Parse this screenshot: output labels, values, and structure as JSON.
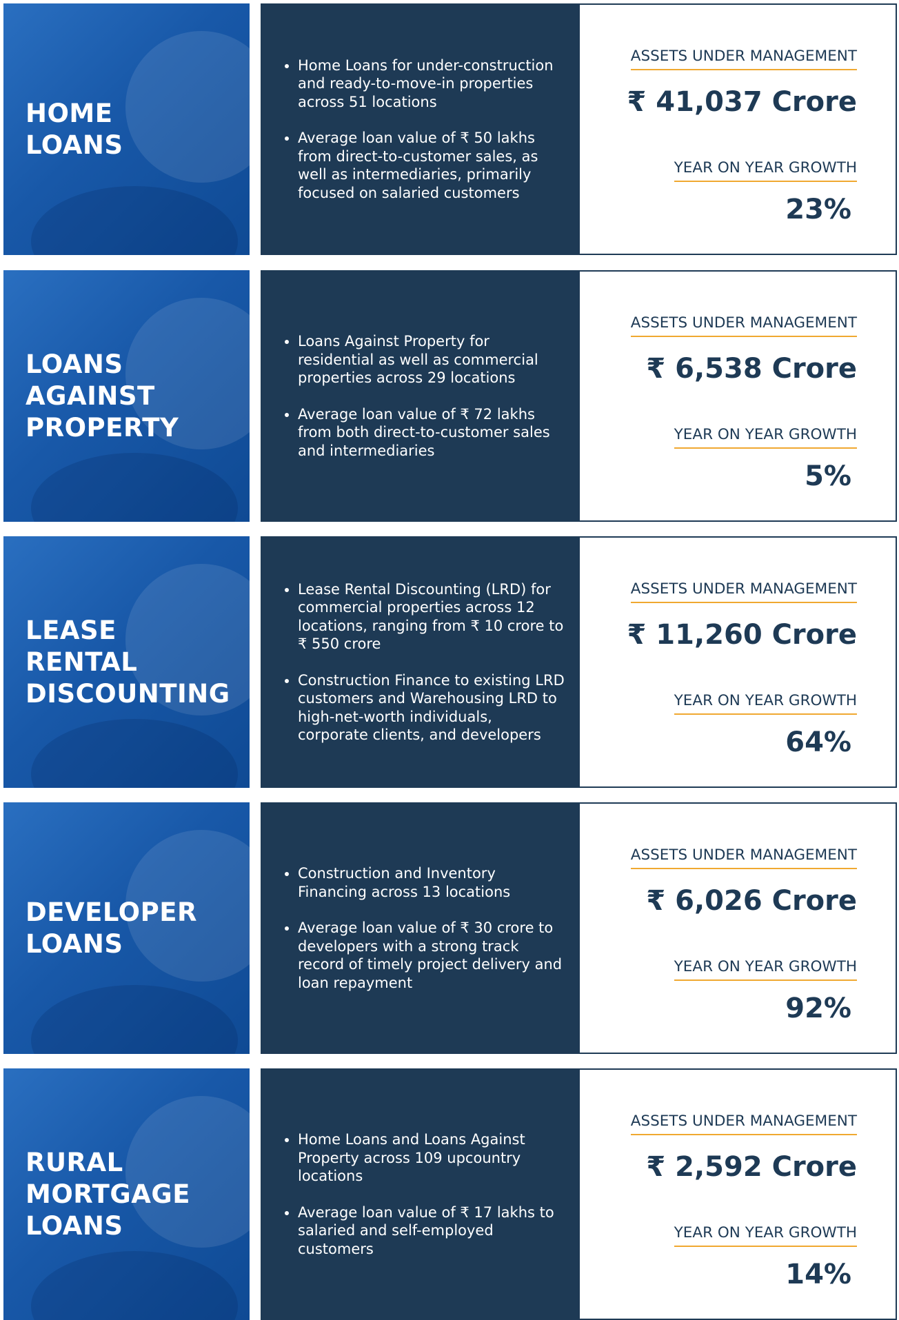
{
  "sections": [
    {
      "title_lines": [
        "HOME",
        "LOANS"
      ],
      "bullets": [
        "Home Loans for under-construction and ready-to-move-in properties across 51 locations",
        "Average loan value of ₹ 50 lakhs from direct-to-customer sales, as well as intermediaries, primarily focused on salaried customers"
      ],
      "aum_label": "ASSETS UNDER MANAGEMENT",
      "aum_value": "₹ 41,037 Crore",
      "growth_label": "YEAR ON YEAR GROWTH",
      "growth_value": "23%"
    },
    {
      "title_lines": [
        "LOANS",
        "AGAINST",
        "PROPERTY"
      ],
      "bullets": [
        "Loans Against Property for residential as well as commercial properties across 29 locations",
        "Average loan value of ₹ 72 lakhs from both direct-to-customer sales and intermediaries"
      ],
      "aum_label": "ASSETS UNDER MANAGEMENT",
      "aum_value": "₹ 6,538 Crore",
      "growth_label": "YEAR ON YEAR GROWTH",
      "growth_value": "5%"
    },
    {
      "title_lines": [
        "LEASE",
        "RENTAL",
        "DISCOUNTING"
      ],
      "bullets": [
        "Lease Rental Discounting (LRD) for commercial properties across 12 locations, ranging from ₹ 10 crore to ₹ 550 crore",
        "Construction Finance to existing LRD customers and Warehousing LRD to high-net-worth individuals, corporate clients, and developers"
      ],
      "aum_label": "ASSETS UNDER MANAGEMENT",
      "aum_value": "₹ 11,260 Crore",
      "growth_label": "YEAR ON YEAR GROWTH",
      "growth_value": "64%"
    },
    {
      "title_lines": [
        "DEVELOPER",
        "LOANS"
      ],
      "bullets": [
        "Construction and Inventory Financing across 13 locations",
        "Average loan value of ₹ 30 crore to developers with a strong track record of timely project delivery and loan repayment"
      ],
      "aum_label": "ASSETS UNDER MANAGEMENT",
      "aum_value": "₹ 6,026 Crore",
      "growth_label": "YEAR ON YEAR GROWTH",
      "growth_value": "92%"
    },
    {
      "title_lines": [
        "RURAL",
        "MORTGAGE",
        "LOANS"
      ],
      "bullets": [
        "Home Loans and Loans Against Property across 109 upcountry locations",
        "Average loan value of ₹ 17 lakhs to salaried and self-employed customers"
      ],
      "aum_label": "ASSETS UNDER MANAGEMENT",
      "aum_value": "₹ 2,592 Crore",
      "growth_label": "YEAR ON YEAR GROWTH",
      "growth_value": "14%"
    }
  ]
}
